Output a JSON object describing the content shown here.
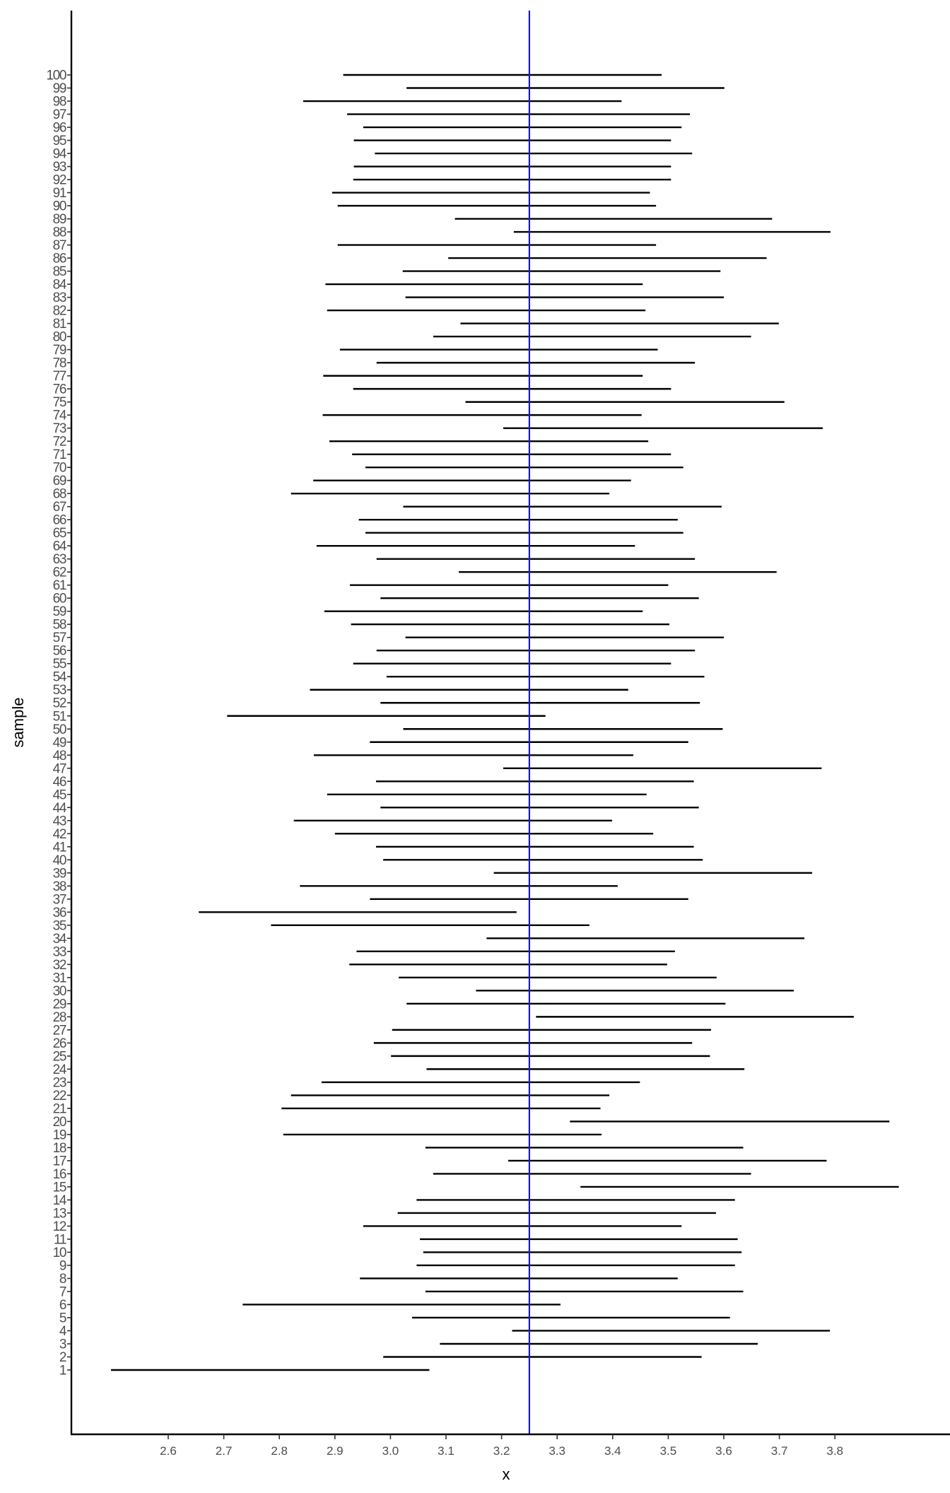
{
  "chart_data": {
    "type": "interval",
    "title": "",
    "xlabel": "x",
    "ylabel": "sample",
    "xlim": [
      2.43,
      3.94
    ],
    "ylim": [
      -2.8,
      106.2
    ],
    "x_ticks": [
      2.6,
      2.7,
      2.8,
      2.9,
      3.0,
      3.1,
      3.2,
      3.3,
      3.4,
      3.5,
      3.6,
      3.7,
      3.8
    ],
    "x_tick_labels": [
      "2.6",
      "2.7",
      "2.8",
      "2.9",
      "3.0",
      "3.1",
      "3.2",
      "3.3",
      "3.4",
      "3.5",
      "3.6",
      "3.7",
      "3.8"
    ],
    "reference_line": {
      "x": 3.25,
      "color": "#1a1acc",
      "orientation": "vertical"
    },
    "segment_color": "#000000",
    "grid": false,
    "legend": null,
    "samples": [
      1,
      2,
      3,
      4,
      5,
      6,
      7,
      8,
      9,
      10,
      11,
      12,
      13,
      14,
      15,
      16,
      17,
      18,
      19,
      20,
      21,
      22,
      23,
      24,
      25,
      26,
      27,
      28,
      29,
      30,
      31,
      32,
      33,
      34,
      35,
      36,
      37,
      38,
      39,
      40,
      41,
      42,
      43,
      44,
      45,
      46,
      47,
      48,
      49,
      50,
      51,
      52,
      53,
      54,
      55,
      56,
      57,
      58,
      59,
      60,
      61,
      62,
      63,
      64,
      65,
      66,
      67,
      68,
      69,
      70,
      71,
      72,
      73,
      74,
      75,
      76,
      77,
      78,
      79,
      80,
      81,
      82,
      83,
      84,
      85,
      86,
      87,
      88,
      89,
      90,
      91,
      92,
      93,
      94,
      95,
      96,
      97,
      98,
      99,
      100
    ],
    "lower": [
      2.497,
      2.987,
      3.089,
      3.219,
      3.039,
      2.734,
      3.063,
      2.945,
      3.047,
      3.059,
      3.053,
      2.951,
      3.013,
      3.047,
      3.342,
      3.077,
      3.212,
      3.063,
      2.807,
      3.323,
      2.804,
      2.821,
      2.876,
      3.065,
      3.001,
      2.97,
      3.003,
      3.262,
      3.029,
      3.154,
      3.015,
      2.926,
      2.939,
      3.173,
      2.785,
      2.655,
      2.963,
      2.837,
      3.186,
      2.987,
      2.974,
      2.9,
      2.826,
      2.982,
      2.886,
      2.974,
      3.203,
      2.862,
      2.963,
      3.023,
      2.706,
      2.982,
      2.855,
      2.993,
      2.933,
      2.975,
      3.027,
      2.929,
      2.881,
      2.982,
      2.927,
      3.123,
      2.975,
      2.867,
      2.955,
      2.943,
      3.023,
      2.821,
      2.861,
      2.955,
      2.931,
      2.89,
      3.203,
      2.878,
      3.135,
      2.933,
      2.879,
      2.975,
      2.909,
      3.077,
      3.126,
      2.886,
      3.027,
      2.883,
      3.022,
      3.104,
      2.905,
      3.222,
      3.116,
      2.905,
      2.895,
      2.933,
      2.934,
      2.972,
      2.934,
      2.951,
      2.922,
      2.843,
      3.029,
      2.915
    ],
    "upper": [
      3.07,
      3.56,
      3.661,
      3.791,
      3.611,
      3.306,
      3.635,
      3.517,
      3.62,
      3.632,
      3.625,
      3.524,
      3.586,
      3.62,
      3.915,
      3.649,
      3.785,
      3.635,
      3.38,
      3.898,
      3.378,
      3.394,
      3.449,
      3.637,
      3.575,
      3.543,
      3.577,
      3.834,
      3.603,
      3.726,
      3.587,
      3.498,
      3.512,
      3.745,
      3.358,
      3.227,
      3.536,
      3.409,
      3.759,
      3.562,
      3.546,
      3.473,
      3.399,
      3.555,
      3.461,
      3.546,
      3.776,
      3.437,
      3.536,
      3.598,
      3.279,
      3.557,
      3.428,
      3.565,
      3.505,
      3.548,
      3.6,
      3.502,
      3.454,
      3.555,
      3.5,
      3.695,
      3.548,
      3.44,
      3.527,
      3.517,
      3.596,
      3.394,
      3.433,
      3.527,
      3.505,
      3.464,
      3.778,
      3.452,
      3.709,
      3.505,
      3.454,
      3.548,
      3.481,
      3.649,
      3.699,
      3.459,
      3.6,
      3.454,
      3.594,
      3.677,
      3.478,
      3.792,
      3.687,
      3.478,
      3.467,
      3.505,
      3.505,
      3.543,
      3.505,
      3.524,
      3.539,
      3.416,
      3.601,
      3.488
    ]
  }
}
